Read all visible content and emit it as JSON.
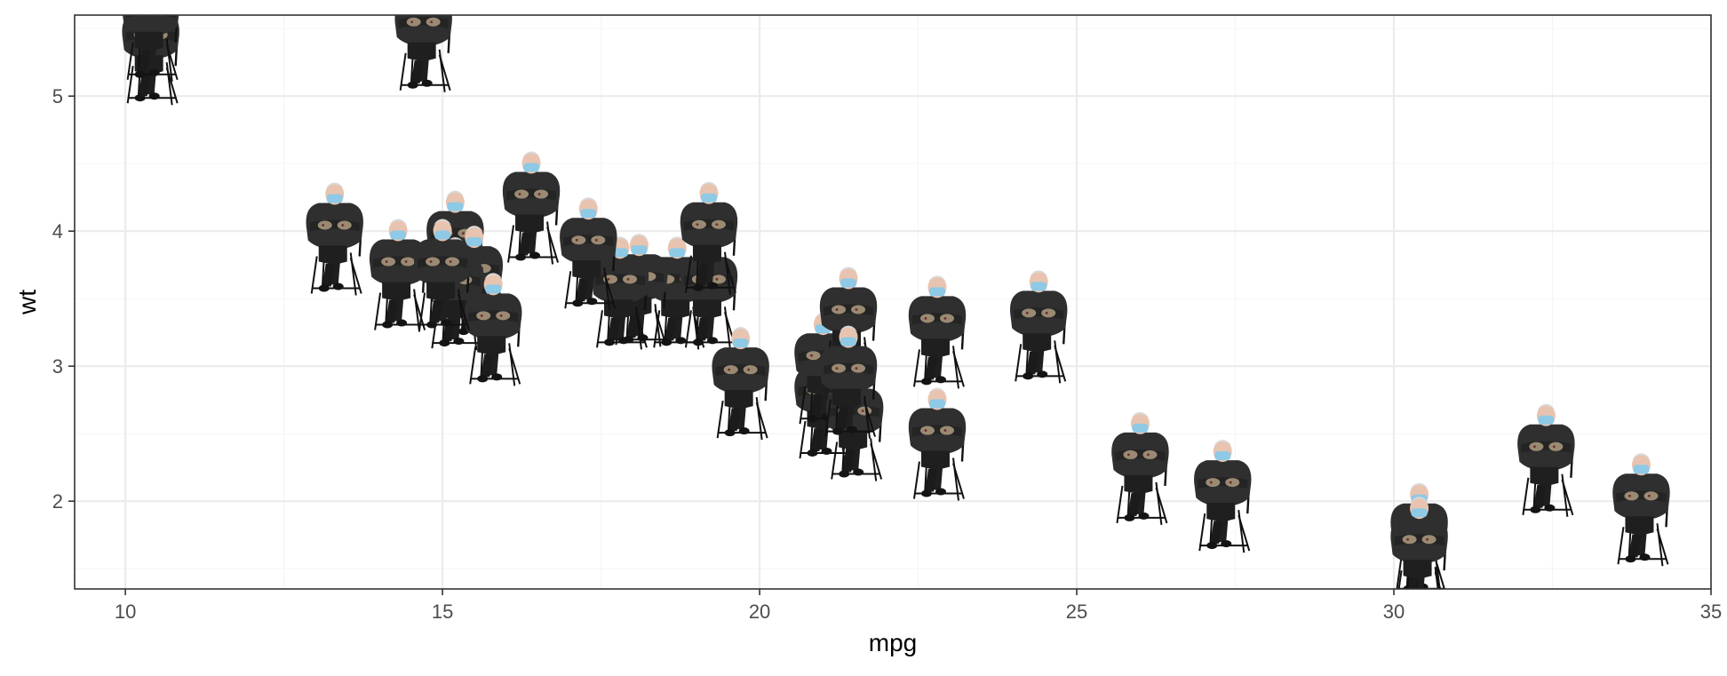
{
  "chart_data": {
    "type": "scatter",
    "title": "",
    "xlabel": "mpg",
    "ylabel": "wt",
    "xlim": [
      9.2,
      35.0
    ],
    "ylim": [
      1.35,
      5.6
    ],
    "x_ticks": [
      10,
      15,
      20,
      25,
      30,
      35
    ],
    "x_tick_labels": [
      "10",
      "15",
      "20",
      "25",
      "30",
      "35"
    ],
    "y_ticks": [
      2,
      3,
      4,
      5
    ],
    "y_tick_labels": [
      "2",
      "3",
      "4",
      "5"
    ],
    "grid": true,
    "marker": "image-icon (seated person in mittens on folding chair)",
    "theme": "bw",
    "points": [
      {
        "x": 21.0,
        "y": 2.62
      },
      {
        "x": 21.0,
        "y": 2.875
      },
      {
        "x": 22.8,
        "y": 2.32
      },
      {
        "x": 21.4,
        "y": 3.215
      },
      {
        "x": 18.7,
        "y": 3.44
      },
      {
        "x": 18.1,
        "y": 3.46
      },
      {
        "x": 14.3,
        "y": 3.57
      },
      {
        "x": 24.4,
        "y": 3.19
      },
      {
        "x": 22.8,
        "y": 3.15
      },
      {
        "x": 19.2,
        "y": 3.44
      },
      {
        "x": 17.8,
        "y": 3.44
      },
      {
        "x": 16.4,
        "y": 4.07
      },
      {
        "x": 17.3,
        "y": 3.73
      },
      {
        "x": 15.2,
        "y": 3.78
      },
      {
        "x": 10.4,
        "y": 5.25
      },
      {
        "x": 10.4,
        "y": 5.424
      },
      {
        "x": 14.7,
        "y": 5.345
      },
      {
        "x": 32.4,
        "y": 2.2
      },
      {
        "x": 30.4,
        "y": 1.615
      },
      {
        "x": 33.9,
        "y": 1.835
      },
      {
        "x": 21.5,
        "y": 2.465
      },
      {
        "x": 15.5,
        "y": 3.52
      },
      {
        "x": 15.2,
        "y": 3.435
      },
      {
        "x": 13.3,
        "y": 3.84
      },
      {
        "x": 19.2,
        "y": 3.845
      },
      {
        "x": 27.3,
        "y": 1.935
      },
      {
        "x": 26.0,
        "y": 2.14
      },
      {
        "x": 30.4,
        "y": 1.513
      },
      {
        "x": 15.8,
        "y": 3.17
      },
      {
        "x": 19.7,
        "y": 2.77
      },
      {
        "x": 15.0,
        "y": 3.57
      },
      {
        "x": 21.4,
        "y": 2.78
      }
    ]
  },
  "colors": {
    "panel_border": "#333333",
    "grid_major": "#ebebeb",
    "grid_minor": "#f5f5f5",
    "tick_text": "#4d4d4d",
    "mask": "#8ec9e6",
    "coat": "#2f2f2f",
    "mitten": "#9b8a73",
    "skin": "#e8c4b0",
    "hair": "#d9d9d9",
    "chair": "#111111"
  }
}
